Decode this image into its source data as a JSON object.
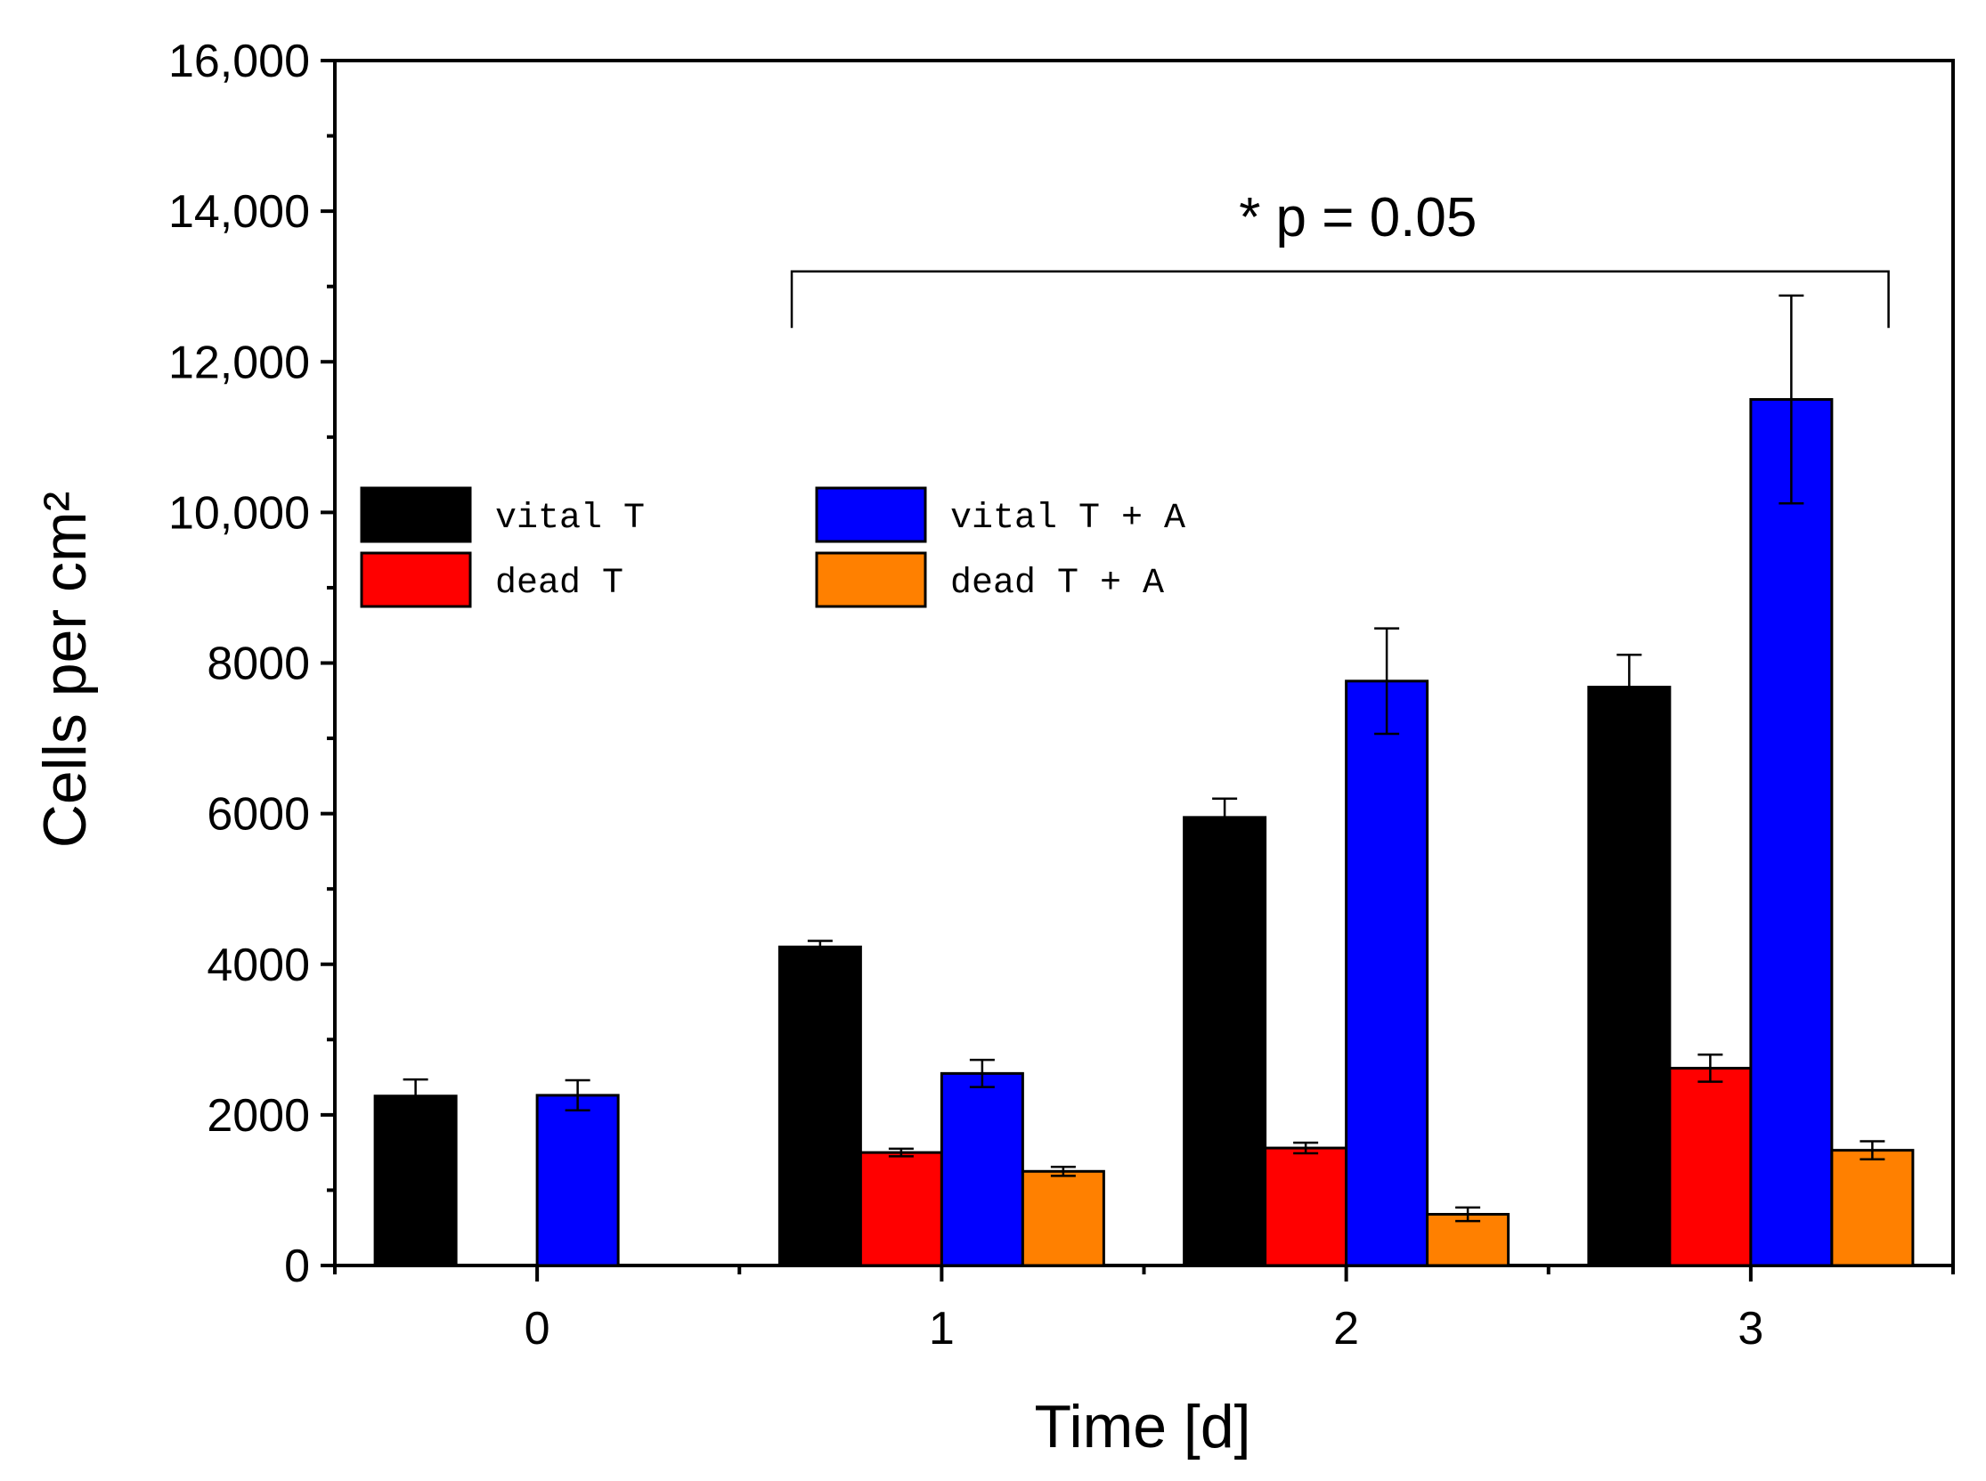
{
  "chart_data": {
    "type": "bar",
    "title": "",
    "xlabel": "Time [d]",
    "ylabel": "Cells per cm²",
    "categories": [
      "0",
      "1",
      "2",
      "3"
    ],
    "ylim": [
      0,
      16000
    ],
    "yticks": [
      {
        "value": 0,
        "label": "0"
      },
      {
        "value": 2000,
        "label": "2000"
      },
      {
        "value": 4000,
        "label": "4000"
      },
      {
        "value": 6000,
        "label": "6000"
      },
      {
        "value": 8000,
        "label": "8000"
      },
      {
        "value": 10000,
        "label": "10,000"
      },
      {
        "value": 12000,
        "label": "12,000"
      },
      {
        "value": 14000,
        "label": "14,000"
      },
      {
        "value": 16000,
        "label": "16,000"
      }
    ],
    "grid": false,
    "legend_position": "upper-left",
    "series": [
      {
        "name": "vital T",
        "color": "#000000",
        "values": [
          2250,
          4230,
          5950,
          7680
        ],
        "errors": [
          220,
          80,
          250,
          430
        ]
      },
      {
        "name": "dead T",
        "color": "#ff0000",
        "values": [
          null,
          1500,
          1560,
          2620
        ],
        "errors": [
          null,
          50,
          70,
          180
        ]
      },
      {
        "name": "vital T + A",
        "color": "#0000ff",
        "values": [
          2260,
          2550,
          7760,
          11500
        ],
        "errors": [
          200,
          180,
          700,
          1380
        ]
      },
      {
        "name": "dead T + A",
        "color": "#ff8000",
        "values": [
          null,
          1250,
          680,
          1530
        ],
        "errors": [
          null,
          60,
          90,
          120
        ]
      }
    ],
    "annotations": [
      {
        "text": "* p = 0.05",
        "from_category": "1",
        "to_category": "3",
        "y_top": 13200,
        "y_bottom": 12450
      }
    ]
  }
}
